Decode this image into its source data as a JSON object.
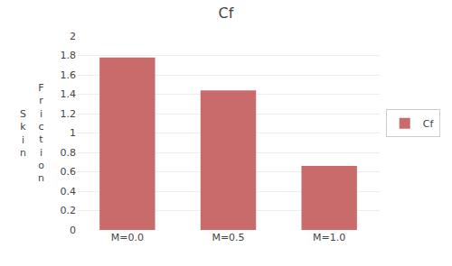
{
  "chart_data": {
    "type": "bar",
    "title": "Cf",
    "categories": [
      "M=0.0",
      "M=0.5",
      "M=1.0"
    ],
    "series": [
      {
        "name": "Cf",
        "color": "#C96B6B",
        "values": [
          1.78,
          1.44,
          0.66
        ]
      }
    ],
    "ylim": [
      0,
      2
    ],
    "yticks": [
      0,
      0.2,
      0.4,
      0.6,
      0.8,
      1,
      1.2,
      1.4,
      1.6,
      1.8,
      2
    ],
    "ylabel": [
      "S\nk\ni\nn",
      "F\nr\ni\nc\nt\ni\no\nn"
    ],
    "grid": true,
    "legend": "right"
  }
}
